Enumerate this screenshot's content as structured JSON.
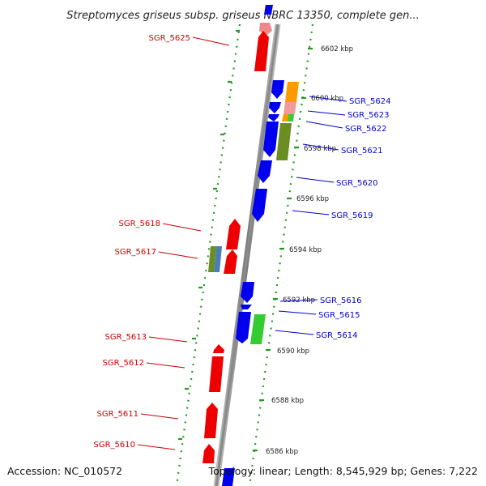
{
  "title": "Streptomyces griseus subsp. griseus NBRC 13350, complete gen...",
  "footer": {
    "accession": "Accession: NC_010572",
    "summary": "Topology: linear; Length: 8,545,929 bp; Genes: 7,222"
  },
  "colors": {
    "left_strand": "#ee0000",
    "left_strand_light": "#f08a8a",
    "right_strand": "#0000ee",
    "left_label": "#cc0000",
    "right_label": "#0000cc",
    "backbone": "#888888",
    "dotted_track": "#229922",
    "feature_orange": "#ff9900",
    "feature_pink": "#f29a9a",
    "feature_olive": "#6b8e23",
    "feature_green": "#33cc33",
    "feature_steelblue": "#4a7fb5"
  },
  "scale_ticks": [
    {
      "label": "6602 kbp"
    },
    {
      "label": "6600 kbp"
    },
    {
      "label": "6598 kbp"
    },
    {
      "label": "6596 kbp"
    },
    {
      "label": "6594 kbp"
    },
    {
      "label": "6592 kbp"
    },
    {
      "label": "6590 kbp"
    },
    {
      "label": "6588 kbp"
    },
    {
      "label": "6586 kbp"
    }
  ],
  "genes_left": [
    {
      "id": "SGR_5625"
    },
    {
      "id": "SGR_5618"
    },
    {
      "id": "SGR_5617"
    },
    {
      "id": "SGR_5613"
    },
    {
      "id": "SGR_5612"
    },
    {
      "id": "SGR_5611"
    },
    {
      "id": "SGR_5610"
    }
  ],
  "genes_right": [
    {
      "id": "SGR_5624"
    },
    {
      "id": "SGR_5623"
    },
    {
      "id": "SGR_5622"
    },
    {
      "id": "SGR_5621"
    },
    {
      "id": "SGR_5620"
    },
    {
      "id": "SGR_5619"
    },
    {
      "id": "SGR_5616"
    },
    {
      "id": "SGR_5615"
    },
    {
      "id": "SGR_5614"
    }
  ]
}
